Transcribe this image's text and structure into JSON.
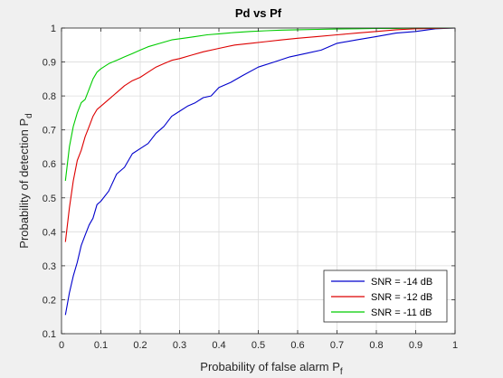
{
  "chart_data": {
    "type": "line",
    "title": "Pd vs Pf",
    "xlabel": "Probability of false alarm P",
    "xlabel_sub": "f",
    "ylabel": "Probability of detection P",
    "ylabel_sub": "d",
    "xlim": [
      0,
      1
    ],
    "ylim": [
      0.1,
      1
    ],
    "xticks": [
      "0",
      "0.1",
      "0.2",
      "0.3",
      "0.4",
      "0.5",
      "0.6",
      "0.7",
      "0.8",
      "0.9",
      "1"
    ],
    "yticks": [
      "0.1",
      "0.2",
      "0.3",
      "0.4",
      "0.5",
      "0.6",
      "0.7",
      "0.8",
      "0.9",
      "1"
    ],
    "grid": true,
    "legend_position": "bottom-right",
    "series": [
      {
        "name": "SNR = -14 dB",
        "color": "#0000cc",
        "x": [
          0.01,
          0.02,
          0.03,
          0.04,
          0.05,
          0.06,
          0.07,
          0.08,
          0.09,
          0.1,
          0.12,
          0.14,
          0.16,
          0.18,
          0.2,
          0.22,
          0.24,
          0.26,
          0.28,
          0.3,
          0.32,
          0.34,
          0.36,
          0.38,
          0.4,
          0.43,
          0.46,
          0.5,
          0.54,
          0.58,
          0.62,
          0.66,
          0.7,
          0.75,
          0.8,
          0.85,
          0.9,
          0.95,
          1.0
        ],
        "y": [
          0.155,
          0.22,
          0.27,
          0.31,
          0.36,
          0.39,
          0.42,
          0.44,
          0.48,
          0.49,
          0.52,
          0.57,
          0.59,
          0.63,
          0.645,
          0.66,
          0.69,
          0.71,
          0.74,
          0.755,
          0.77,
          0.78,
          0.795,
          0.8,
          0.825,
          0.84,
          0.86,
          0.885,
          0.9,
          0.915,
          0.925,
          0.935,
          0.955,
          0.965,
          0.975,
          0.985,
          0.99,
          0.998,
          1.0
        ]
      },
      {
        "name": "SNR = -12 dB",
        "color": "#dd0000",
        "x": [
          0.01,
          0.02,
          0.03,
          0.04,
          0.05,
          0.06,
          0.07,
          0.08,
          0.09,
          0.1,
          0.12,
          0.14,
          0.16,
          0.18,
          0.2,
          0.22,
          0.24,
          0.26,
          0.28,
          0.3,
          0.33,
          0.36,
          0.4,
          0.44,
          0.48,
          0.52,
          0.56,
          0.6,
          0.65,
          0.7,
          0.75,
          0.8,
          0.85,
          0.9,
          0.95,
          1.0
        ],
        "y": [
          0.37,
          0.47,
          0.55,
          0.61,
          0.64,
          0.68,
          0.71,
          0.74,
          0.76,
          0.77,
          0.79,
          0.81,
          0.83,
          0.845,
          0.855,
          0.87,
          0.885,
          0.895,
          0.905,
          0.91,
          0.92,
          0.93,
          0.94,
          0.95,
          0.955,
          0.96,
          0.965,
          0.97,
          0.975,
          0.98,
          0.985,
          0.99,
          0.995,
          0.998,
          0.999,
          1.0
        ]
      },
      {
        "name": "SNR = -11 dB",
        "color": "#00cc00",
        "x": [
          0.01,
          0.02,
          0.03,
          0.04,
          0.05,
          0.06,
          0.07,
          0.08,
          0.09,
          0.1,
          0.12,
          0.14,
          0.16,
          0.18,
          0.2,
          0.22,
          0.25,
          0.28,
          0.31,
          0.34,
          0.37,
          0.4,
          0.44,
          0.48,
          0.52,
          0.56,
          0.6,
          0.65,
          0.7,
          0.75,
          0.8,
          0.85,
          0.9,
          0.95,
          1.0
        ],
        "y": [
          0.55,
          0.65,
          0.71,
          0.75,
          0.78,
          0.79,
          0.82,
          0.85,
          0.87,
          0.88,
          0.895,
          0.905,
          0.915,
          0.925,
          0.935,
          0.945,
          0.955,
          0.965,
          0.97,
          0.975,
          0.98,
          0.983,
          0.987,
          0.99,
          0.992,
          0.994,
          0.995,
          0.996,
          0.997,
          0.998,
          0.999,
          0.999,
          1.0,
          1.0,
          1.0
        ]
      }
    ]
  }
}
